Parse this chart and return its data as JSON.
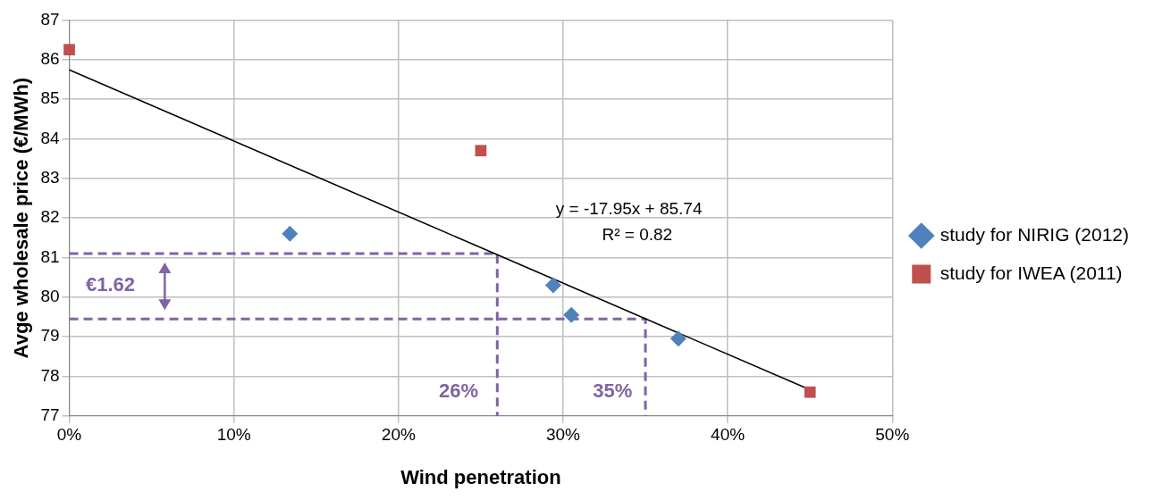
{
  "chart_data": {
    "type": "scatter",
    "xlabel": "Wind penetration",
    "ylabel": "Avge wholesale price (€/MWh)",
    "xlim": [
      0,
      50
    ],
    "xticks": [
      {
        "value": 0,
        "label": "0%"
      },
      {
        "value": 10,
        "label": "10%"
      },
      {
        "value": 20,
        "label": "20%"
      },
      {
        "value": 30,
        "label": "30%"
      },
      {
        "value": 40,
        "label": "40%"
      },
      {
        "value": 50,
        "label": "50%"
      }
    ],
    "ylim": [
      77,
      87
    ],
    "yticks": [
      77,
      78,
      79,
      80,
      81,
      82,
      83,
      84,
      85,
      86,
      87
    ],
    "grid": true,
    "legend": "right",
    "series": [
      {
        "name": "study for NIRIG (2012)",
        "type": "scatter",
        "marker": "diamond",
        "color": "#4f81bd",
        "x": [
          13.4,
          29.4,
          30.5,
          37
        ],
        "values": [
          81.6,
          80.3,
          79.55,
          78.95
        ]
      },
      {
        "name": "study for IWEA (2011)",
        "type": "scatter",
        "marker": "square",
        "color": "#c0504d",
        "x": [
          0,
          25,
          45
        ],
        "values": [
          86.25,
          83.7,
          77.6
        ]
      },
      {
        "type": "line",
        "marker": "none",
        "line_style": "solid",
        "color": "#000000",
        "x": [
          0,
          45
        ],
        "values": [
          85.74,
          77.66
        ]
      },
      {
        "type": "line",
        "marker": "none",
        "line_style": "dashed",
        "color": "#8064a2",
        "x": [
          0,
          26,
          26
        ],
        "values": [
          81.1,
          81.1,
          77
        ]
      },
      {
        "type": "line",
        "marker": "none",
        "line_style": "dashed",
        "color": "#8064a2",
        "x": [
          0,
          35,
          35
        ],
        "values": [
          79.45,
          79.45,
          77
        ]
      }
    ],
    "annotations": [
      "y = -17.95x + 85.74",
      "R² = 0.82",
      "€1.62",
      "26%",
      "35%"
    ]
  }
}
